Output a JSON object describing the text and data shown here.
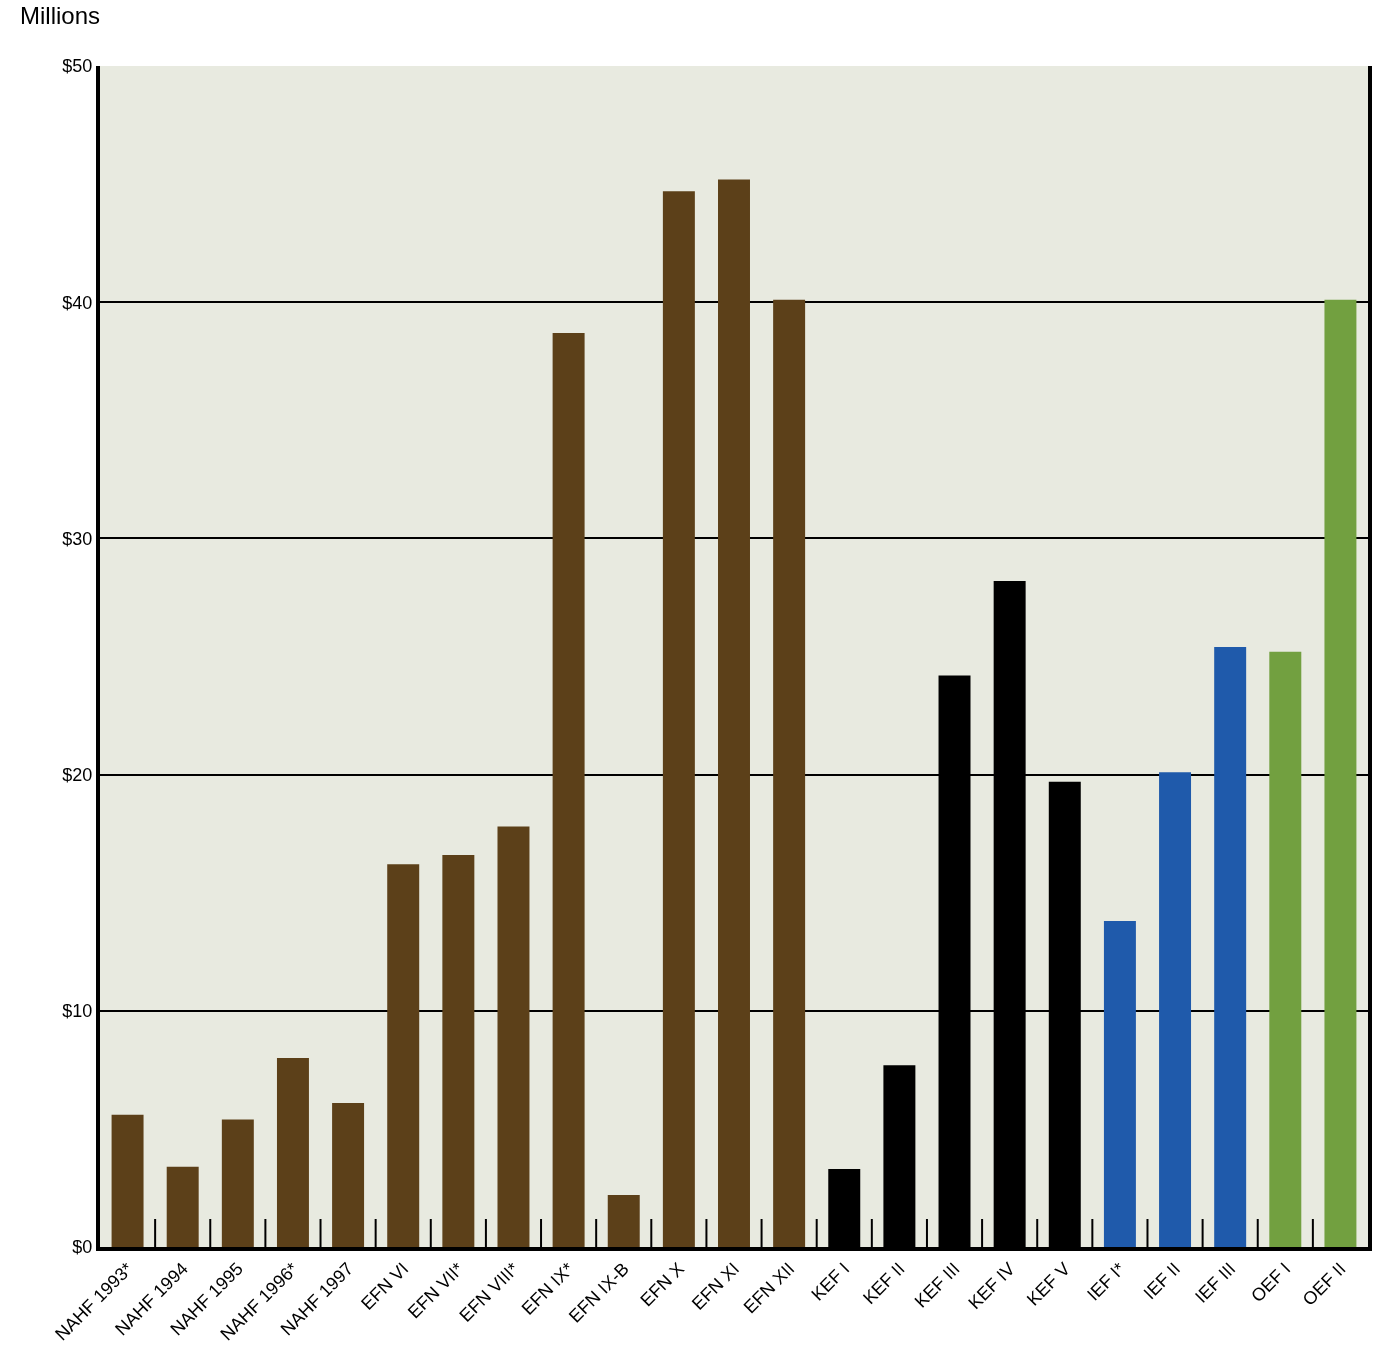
{
  "chart_data": {
    "type": "bar",
    "ylabel": "Millions",
    "categories": [
      "NAHF 1993*",
      "NAHF 1994",
      "NAHF 1995",
      "NAHF 1996*",
      "NAHF 1997",
      "EFN VI",
      "EFN VII*",
      "EFN VIII*",
      "EFN IX*",
      "EFN IX-B",
      "EFN X",
      "EFN XI",
      "EFN XII",
      "KEF I",
      "KEF II",
      "KEF III",
      "KEF IV",
      "KEF V",
      "IEF I*",
      "IEF II",
      "IEF III",
      "OEF I",
      "OEF II"
    ],
    "values": [
      5.6,
      3.4,
      5.4,
      8.0,
      6.1,
      16.2,
      16.6,
      17.8,
      38.7,
      2.2,
      44.7,
      45.2,
      40.1,
      3.3,
      7.7,
      24.2,
      28.2,
      19.7,
      13.8,
      20.1,
      25.4,
      25.2,
      40.1
    ],
    "colors": [
      "#5c4019",
      "#5c4019",
      "#5c4019",
      "#5c4019",
      "#5c4019",
      "#5c4019",
      "#5c4019",
      "#5c4019",
      "#5c4019",
      "#5c4019",
      "#5c4019",
      "#5c4019",
      "#5c4019",
      "#000000",
      "#000000",
      "#000000",
      "#000000",
      "#000000",
      "#1f5aab",
      "#1f5aab",
      "#1f5aab",
      "#72a040",
      "#72a040"
    ],
    "ylim": [
      0,
      50
    ],
    "yticks": [
      {
        "value": 0,
        "label": "$0"
      },
      {
        "value": 10,
        "label": "$10"
      },
      {
        "value": 20,
        "label": "$20"
      },
      {
        "value": 30,
        "label": "$30"
      },
      {
        "value": 40,
        "label": "$40"
      },
      {
        "value": 50,
        "label": "$50"
      }
    ],
    "grid": "y"
  }
}
